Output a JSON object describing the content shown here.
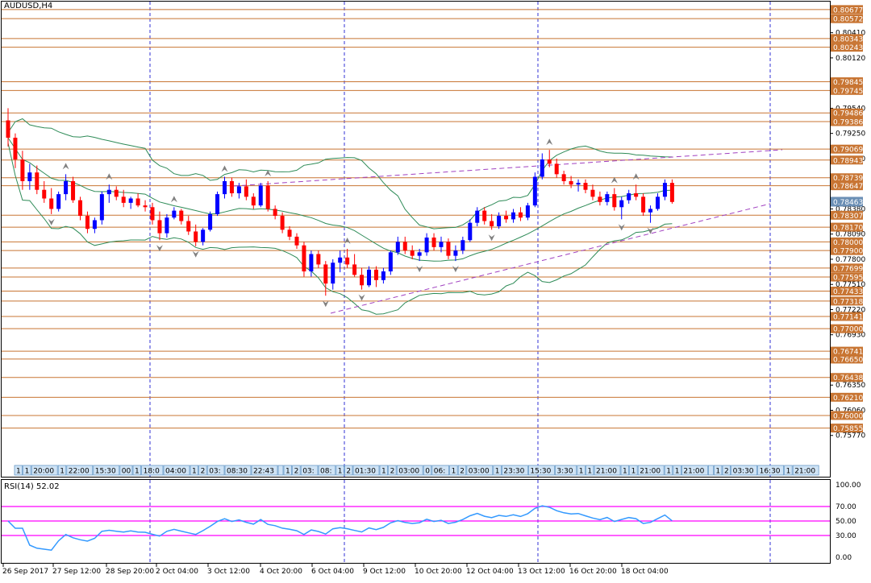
{
  "window_title": "AUDUSD,H4",
  "rsi_label": "RSI(14) 52.02",
  "colors": {
    "bull": "#0000ff",
    "bear": "#ff0000",
    "level_line": "#c87533",
    "level_label_bg": "#c87533",
    "current_label_bg": "#6b8fb5",
    "trend": "#a040c0",
    "bands": "#2e8b57",
    "rsi_line": "#3399ff",
    "rsi_level": "#ff00ff",
    "grid": "#0000cc",
    "fractal": "#808080",
    "zigzag": "#dd0000"
  },
  "price_axis": {
    "min": 0.7548,
    "max": 0.8075,
    "ticks": [
      "0.80410",
      "0.80120",
      "0.79540",
      "0.79250",
      "0.78960",
      "0.78380",
      "0.78090",
      "0.77800",
      "0.77510",
      "0.77220",
      "0.76930",
      "0.76350",
      "0.76060",
      "0.75770"
    ]
  },
  "levels": [
    "0.80677",
    "0.80572",
    "0.80343",
    "0.80243",
    "0.79845",
    "0.79745",
    "0.79486",
    "0.79386",
    "0.79069",
    "0.78943",
    "0.78739",
    "0.78647",
    "0.78307",
    "0.78170",
    "0.78000",
    "0.77900",
    "0.77699",
    "0.77595",
    "0.77433",
    "0.77318",
    "0.77141",
    "0.77000",
    "0.76741",
    "0.76650",
    "0.76438",
    "0.76210",
    "0.76000",
    "0.75855"
  ],
  "current_price": "0.78463",
  "session_labels": [
    "1",
    "1",
    "20:00",
    "1",
    "22:00",
    "15:30",
    "00",
    "1",
    "18:0",
    "04:00",
    "1",
    "2",
    "03:",
    "08:30",
    "22:43",
    "",
    "1",
    "2",
    "03:",
    "08:",
    "1",
    "2",
    "01:30",
    "1",
    "2",
    "03:00",
    "0",
    "06:",
    "1",
    "2",
    "03:00",
    "1",
    "23:30",
    "15:30",
    "3:30",
    "1",
    "1",
    "21:00",
    "1",
    "1",
    "21:00",
    "1",
    "1",
    "21:00",
    "",
    "1",
    "2",
    "03:30",
    "16:30",
    "1",
    "21:00"
  ],
  "time_labels": [
    "26 Sep 2017",
    "27 Sep 12:00",
    "28 Sep 20:00",
    "2 Oct 04:00",
    "3 Oct 12:00",
    "4 Oct 20:00",
    "6 Oct 04:00",
    "9 Oct 12:00",
    "10 Oct 20:00",
    "12 Oct 04:00",
    "13 Oct 12:00",
    "16 Oct 20:00",
    "18 Oct 04:00"
  ],
  "rsi_axis": [
    "100.00",
    "70.00",
    "50.00",
    "30.00",
    "0.00"
  ],
  "chart_data": {
    "type": "candlestick",
    "title": "AUDUSD,H4",
    "ylim": [
      0.7548,
      0.8075
    ],
    "candles": [
      [
        0.794,
        0.7954,
        0.791,
        0.792
      ],
      [
        0.792,
        0.7925,
        0.7885,
        0.7895
      ],
      [
        0.7895,
        0.7905,
        0.786,
        0.787
      ],
      [
        0.787,
        0.789,
        0.786,
        0.788
      ],
      [
        0.788,
        0.7888,
        0.7855,
        0.786
      ],
      [
        0.786,
        0.787,
        0.7845,
        0.785
      ],
      [
        0.785,
        0.7862,
        0.7832,
        0.7838
      ],
      [
        0.7838,
        0.7858,
        0.7835,
        0.7855
      ],
      [
        0.7855,
        0.7878,
        0.7848,
        0.787
      ],
      [
        0.787,
        0.7875,
        0.7845,
        0.7848
      ],
      [
        0.7848,
        0.7852,
        0.7825,
        0.783
      ],
      [
        0.783,
        0.7835,
        0.781,
        0.7815
      ],
      [
        0.7815,
        0.7828,
        0.781,
        0.7825
      ],
      [
        0.7825,
        0.7858,
        0.782,
        0.7855
      ],
      [
        0.7855,
        0.7866,
        0.7845,
        0.786
      ],
      [
        0.786,
        0.7864,
        0.7848,
        0.7852
      ],
      [
        0.7852,
        0.786,
        0.784,
        0.7845
      ],
      [
        0.7845,
        0.7852,
        0.7838,
        0.785
      ],
      [
        0.785,
        0.7856,
        0.784,
        0.7842
      ],
      [
        0.7842,
        0.7848,
        0.7835,
        0.784
      ],
      [
        0.784,
        0.7845,
        0.782,
        0.7825
      ],
      [
        0.7825,
        0.7835,
        0.7802,
        0.781
      ],
      [
        0.781,
        0.7832,
        0.7805,
        0.7828
      ],
      [
        0.7828,
        0.784,
        0.7826,
        0.7836
      ],
      [
        0.7836,
        0.7838,
        0.782,
        0.7824
      ],
      [
        0.7824,
        0.783,
        0.7808,
        0.7812
      ],
      [
        0.7812,
        0.782,
        0.7795,
        0.78
      ],
      [
        0.78,
        0.7816,
        0.7796,
        0.7814
      ],
      [
        0.7814,
        0.7835,
        0.7812,
        0.7832
      ],
      [
        0.7832,
        0.7858,
        0.783,
        0.7855
      ],
      [
        0.7855,
        0.7875,
        0.785,
        0.787
      ],
      [
        0.787,
        0.7874,
        0.7852,
        0.7856
      ],
      [
        0.7856,
        0.7868,
        0.785,
        0.7864
      ],
      [
        0.7864,
        0.7872,
        0.7848,
        0.7852
      ],
      [
        0.7852,
        0.7856,
        0.7838,
        0.7842
      ],
      [
        0.7842,
        0.7868,
        0.784,
        0.7865
      ],
      [
        0.7865,
        0.787,
        0.7835,
        0.7838
      ],
      [
        0.7838,
        0.7842,
        0.7826,
        0.783
      ],
      [
        0.783,
        0.7834,
        0.781,
        0.7814
      ],
      [
        0.7814,
        0.7818,
        0.7802,
        0.7806
      ],
      [
        0.7806,
        0.781,
        0.7792,
        0.7796
      ],
      [
        0.7796,
        0.78,
        0.776,
        0.7766
      ],
      [
        0.7766,
        0.779,
        0.776,
        0.7786
      ],
      [
        0.7786,
        0.779,
        0.777,
        0.7774
      ],
      [
        0.7774,
        0.7778,
        0.7738,
        0.7752
      ],
      [
        0.7752,
        0.778,
        0.7745,
        0.7776
      ],
      [
        0.7776,
        0.779,
        0.7765,
        0.7782
      ],
      [
        0.7782,
        0.7792,
        0.777,
        0.7774
      ],
      [
        0.7774,
        0.7786,
        0.776,
        0.7762
      ],
      [
        0.7762,
        0.777,
        0.7745,
        0.775
      ],
      [
        0.775,
        0.7772,
        0.7748,
        0.7768
      ],
      [
        0.7768,
        0.7772,
        0.7748,
        0.7756
      ],
      [
        0.7756,
        0.777,
        0.7752,
        0.7766
      ],
      [
        0.7766,
        0.779,
        0.7762,
        0.7788
      ],
      [
        0.7788,
        0.7806,
        0.7785,
        0.78
      ],
      [
        0.78,
        0.7806,
        0.7786,
        0.779
      ],
      [
        0.779,
        0.7796,
        0.778,
        0.7784
      ],
      [
        0.7784,
        0.7792,
        0.7778,
        0.7788
      ],
      [
        0.7788,
        0.781,
        0.7784,
        0.7805
      ],
      [
        0.7805,
        0.781,
        0.779,
        0.7794
      ],
      [
        0.7794,
        0.7806,
        0.7788,
        0.78
      ],
      [
        0.78,
        0.7804,
        0.778,
        0.7784
      ],
      [
        0.7784,
        0.7796,
        0.7778,
        0.779
      ],
      [
        0.779,
        0.7806,
        0.7786,
        0.7802
      ],
      [
        0.7802,
        0.7826,
        0.78,
        0.7822
      ],
      [
        0.7822,
        0.784,
        0.7818,
        0.7836
      ],
      [
        0.7836,
        0.784,
        0.782,
        0.7824
      ],
      [
        0.7824,
        0.7832,
        0.7814,
        0.7818
      ],
      [
        0.7818,
        0.7834,
        0.7815,
        0.783
      ],
      [
        0.783,
        0.7836,
        0.7822,
        0.7826
      ],
      [
        0.7826,
        0.7838,
        0.7822,
        0.7834
      ],
      [
        0.7834,
        0.784,
        0.7824,
        0.7828
      ],
      [
        0.7828,
        0.7845,
        0.7825,
        0.7842
      ],
      [
        0.7842,
        0.788,
        0.784,
        0.7875
      ],
      [
        0.7875,
        0.7902,
        0.7872,
        0.7895
      ],
      [
        0.7895,
        0.7906,
        0.7886,
        0.789
      ],
      [
        0.789,
        0.7896,
        0.7874,
        0.7878
      ],
      [
        0.7878,
        0.7882,
        0.7866,
        0.787
      ],
      [
        0.787,
        0.7876,
        0.7862,
        0.7866
      ],
      [
        0.7866,
        0.7872,
        0.7858,
        0.7868
      ],
      [
        0.7868,
        0.7872,
        0.7856,
        0.786
      ],
      [
        0.786,
        0.7866,
        0.7848,
        0.7852
      ],
      [
        0.7852,
        0.7858,
        0.7842,
        0.7846
      ],
      [
        0.7846,
        0.7858,
        0.7842,
        0.7855
      ],
      [
        0.7855,
        0.7862,
        0.7836,
        0.784
      ],
      [
        0.784,
        0.7852,
        0.7826,
        0.7848
      ],
      [
        0.7848,
        0.786,
        0.7844,
        0.7856
      ],
      [
        0.7856,
        0.7866,
        0.7848,
        0.7852
      ],
      [
        0.7852,
        0.7856,
        0.783,
        0.7834
      ],
      [
        0.7834,
        0.7842,
        0.7822,
        0.7838
      ],
      [
        0.7838,
        0.7856,
        0.7836,
        0.7852
      ],
      [
        0.7852,
        0.7872,
        0.7848,
        0.7868
      ],
      [
        0.7868,
        0.7872,
        0.7844,
        0.7846
      ]
    ]
  }
}
